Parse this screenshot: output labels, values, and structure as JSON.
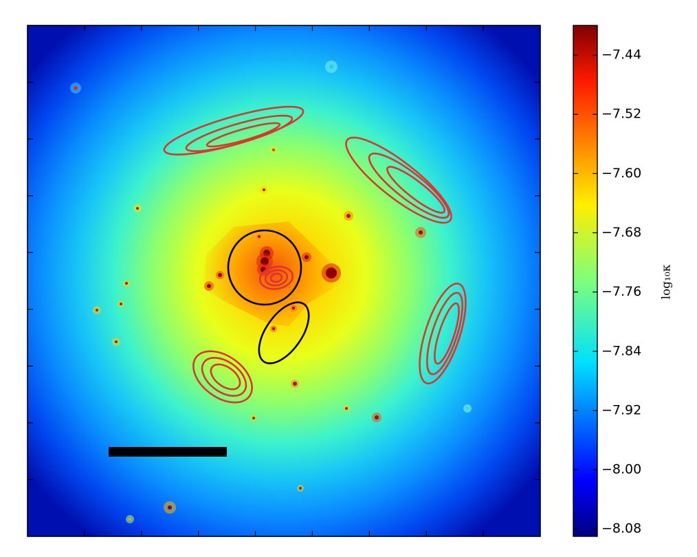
{
  "chart_data": {
    "type": "heatmap",
    "title": "",
    "xlabel": "",
    "ylabel": "",
    "grid": false,
    "colormap": "jet",
    "colorbar": {
      "label": "log₁₀κ",
      "min": -8.09,
      "max": -7.4,
      "ticks": [
        -7.44,
        -7.52,
        -7.6,
        -7.68,
        -7.76,
        -7.84,
        -7.92,
        -8.0,
        -8.08
      ],
      "tick_labels": [
        "−7.44",
        "−7.52",
        "−7.60",
        "−7.68",
        "−7.76",
        "−7.84",
        "−7.92",
        "−8.00",
        "−8.08"
      ]
    },
    "contours": {
      "color": "#e0332e",
      "count": 5
    },
    "critical_curves": {
      "color": "#000000",
      "count": 2
    },
    "scale_bar": {
      "color": "#000000"
    }
  }
}
